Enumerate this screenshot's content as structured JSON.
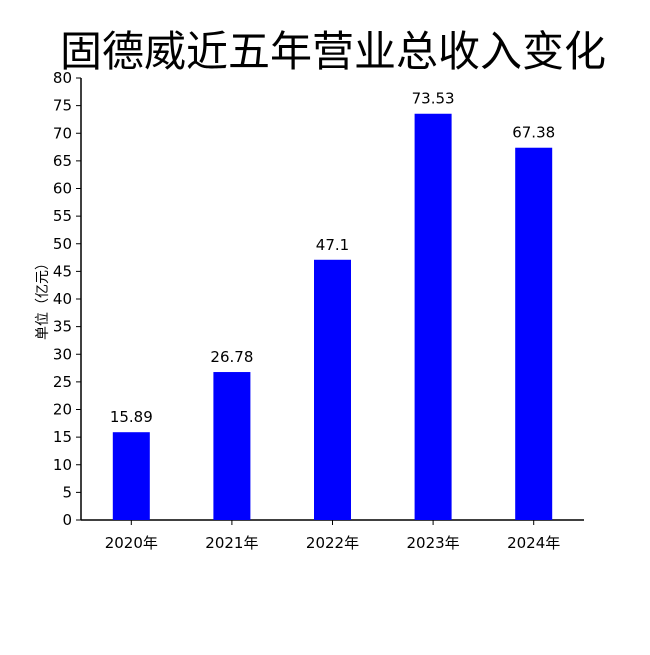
{
  "chart_data": {
    "type": "bar",
    "title": "固德威近五年营业总收入变化",
    "xlabel": "",
    "ylabel": "单位（亿元）",
    "categories": [
      "2020年",
      "2021年",
      "2022年",
      "2023年",
      "2024年"
    ],
    "values": [
      15.89,
      26.78,
      47.1,
      73.53,
      67.38
    ],
    "data_labels": [
      "15.89",
      "26.78",
      "47.1",
      "73.53",
      "67.38"
    ],
    "ylim": [
      0,
      80
    ],
    "yticks": [
      0,
      5,
      10,
      15,
      20,
      25,
      30,
      35,
      40,
      45,
      50,
      55,
      60,
      65,
      70,
      75,
      80
    ],
    "grid": false,
    "legend": "none",
    "bar_color": "#0000ff"
  }
}
